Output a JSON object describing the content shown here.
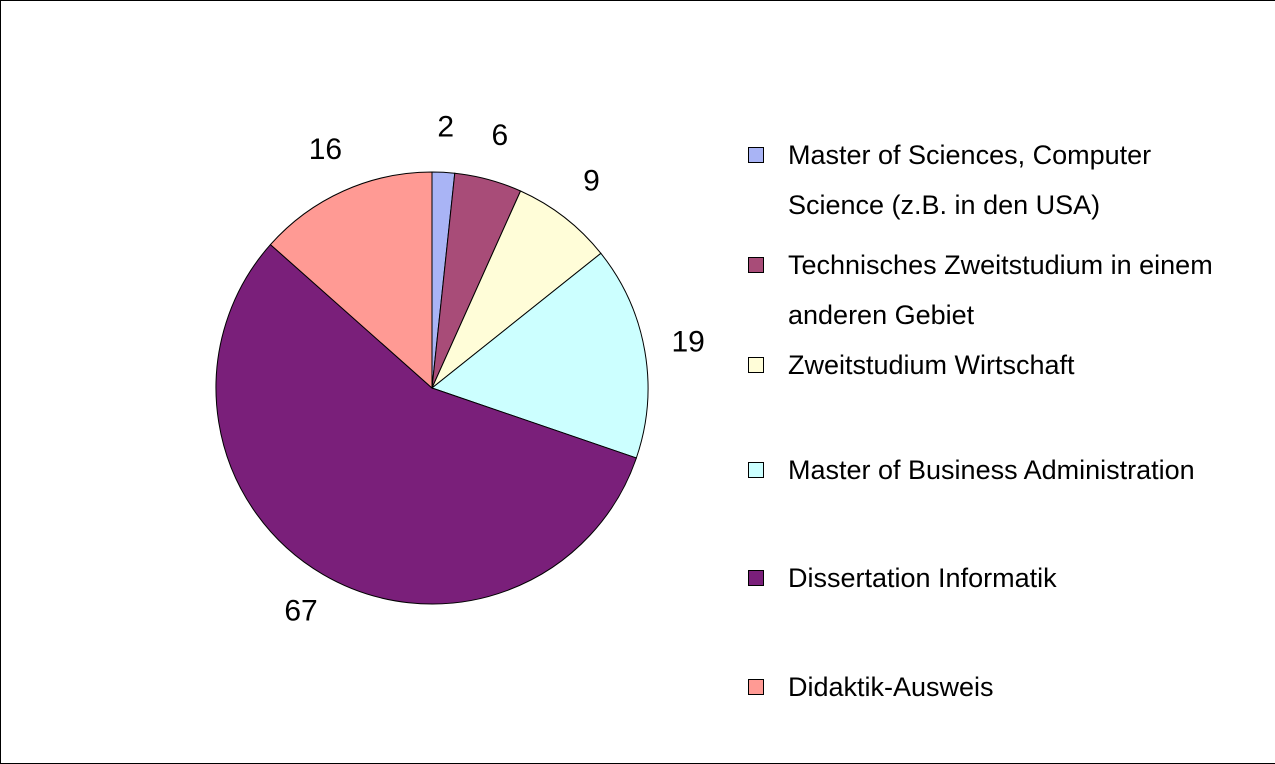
{
  "chart_data": {
    "type": "pie",
    "categories": [
      "Master of Sciences, Computer Science (z.B. in den USA)",
      "Technisches Zweitstudium in einem anderen Gebiet",
      "Zweitstudium Wirtschaft",
      "Master of Business Administration",
      "Dissertation Informatik",
      "Didaktik-Ausweis"
    ],
    "values": [
      2,
      6,
      9,
      19,
      67,
      16
    ],
    "colors": [
      "#a9b4f5",
      "#a84c78",
      "#fffdd8",
      "#ccffff",
      "#7a1f7a",
      "#ff9a94"
    ],
    "legend": "right"
  }
}
